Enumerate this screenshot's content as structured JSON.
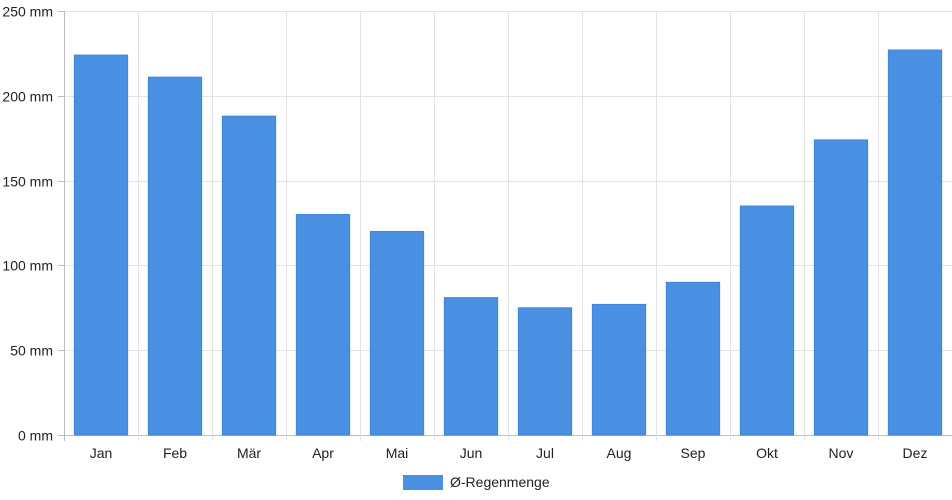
{
  "chart_data": {
    "type": "bar",
    "categories": [
      "Jan",
      "Feb",
      "Mär",
      "Apr",
      "Mai",
      "Jun",
      "Jul",
      "Aug",
      "Sep",
      "Okt",
      "Nov",
      "Dez"
    ],
    "series": [
      {
        "name": "Ø-Regenmenge",
        "values": [
          224,
          211,
          188,
          130,
          120,
          81,
          75,
          77,
          90,
          135,
          174,
          227
        ],
        "color": "#4a90e2"
      }
    ],
    "title": "",
    "xlabel": "",
    "ylabel": "",
    "ylim": [
      0,
      250
    ],
    "yticks": [
      0,
      50,
      100,
      150,
      200,
      250
    ],
    "y_tick_labels": [
      "0 mm",
      "50 mm",
      "100 mm",
      "150 mm",
      "200 mm",
      "250 mm"
    ],
    "grid": true,
    "legend_position": "bottom-center"
  }
}
